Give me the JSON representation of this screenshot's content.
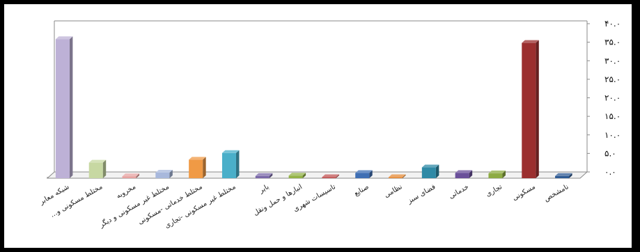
{
  "chart_data": {
    "type": "bar",
    "style": "3d-column",
    "y_axis_side": "right",
    "grid": false,
    "legend": "none",
    "ylim": [
      0,
      40
    ],
    "yticks": [
      "۴۰.۰",
      "۳۵.۰",
      "۳۰.۰",
      "۲۵.۰",
      "۲۰.۰",
      "۱۵.۰",
      "۱۰.۰",
      "۵.۰",
      "۰.۰"
    ],
    "categories": [
      "شبکه معابر",
      "مختلط مسکونی و...",
      "مخروبه",
      "مختلط غیر مسکونی و دیگر",
      "مختلط خدماتی -مسکونی",
      "مختلط غیر مسکونی -تجاری",
      "بایر",
      "انبارها و حمل ونقل",
      "تاسیسات شهری",
      "صنایع",
      "نظامی",
      "فضای سبز",
      "خدماتی",
      "تجاری",
      "مسکونی",
      "نامشخص"
    ],
    "values": [
      37.5,
      4.2,
      0.5,
      1.5,
      5.0,
      6.8,
      0.6,
      0.7,
      0.2,
      1.4,
      0.2,
      2.9,
      1.4,
      1.3,
      36.5,
      0.6
    ],
    "colors": [
      "#bdb1d6",
      "#c7d8a2",
      "#e7a3a1",
      "#a8b8dc",
      "#f09a45",
      "#4aafc9",
      "#7a68a8",
      "#93b347",
      "#c15555",
      "#3f6fb4",
      "#e58c3a",
      "#2f8aa6",
      "#6a4f9a",
      "#8dab43",
      "#9b2f2f",
      "#2f5b94"
    ]
  }
}
